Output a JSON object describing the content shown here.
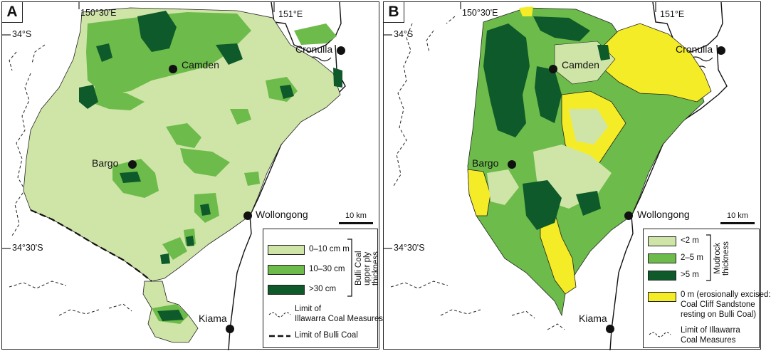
{
  "panel_a": {
    "letter": "A",
    "lon_left": "150°30'E",
    "lon_right": "151°E",
    "lat_top": "34°S",
    "lat_bottom": "34°30'S",
    "towns": {
      "camden": "Camden",
      "cronulla": "Cronulla",
      "bargo": "Bargo",
      "wollongong": "Wollongong",
      "kiama": "Kiama"
    },
    "scale": "10 km",
    "legend": {
      "items": [
        "0–10 cm m",
        "10–30 cm",
        ">30 cm"
      ],
      "group_label": "Bulli Coal\nupper ply\nthickness",
      "limit_illawarra": [
        "Limit of",
        "Illawarra Coal Measures"
      ],
      "limit_bulli": "Limit of Bulli Coal"
    }
  },
  "panel_b": {
    "letter": "B",
    "lon_left": "150°30'E",
    "lon_right": "151°E",
    "lat_top": "34°S",
    "lat_bottom": "34°30'S",
    "towns": {
      "camden": "Camden",
      "cronulla": "Cronulla",
      "bargo": "Bargo",
      "wollongong": "Wollongong",
      "kiama": "Kiama"
    },
    "scale": "10 km",
    "legend": {
      "items": [
        "<2 m",
        "2–5 m",
        ">5 m"
      ],
      "group_label": "Mudrock\nthickness",
      "excised": [
        "0 m (erosionally excised:",
        "Coal Cliff Sandstone",
        "resting on Bulli Coal)"
      ],
      "limit_illawarra": [
        "Limit of Illawarra",
        "Coal Measures"
      ]
    }
  },
  "colors": {
    "light": "#cfe5a8",
    "medium": "#6dbb4a",
    "dark": "#0e5a2a",
    "yellow": "#f5ec28"
  }
}
